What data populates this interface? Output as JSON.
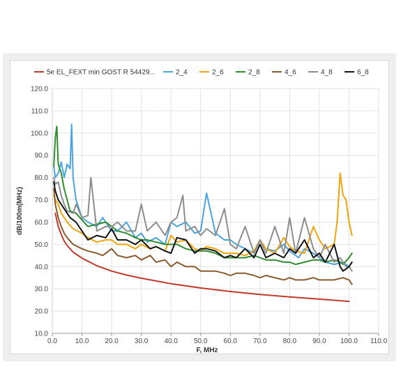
{
  "chart_data": {
    "type": "line",
    "title": "",
    "xlabel": "F, MHz",
    "ylabel": "dB/100m(MHz)",
    "xlim": [
      0,
      110
    ],
    "ylim": [
      10,
      120
    ],
    "x_ticks": [
      "0.0",
      "10.0",
      "20.0",
      "30.0",
      "40.0",
      "50.0",
      "60.0",
      "70.0",
      "80.0",
      "90.0",
      "100.0",
      "110.0"
    ],
    "y_ticks": [
      "10.0",
      "20.0",
      "30.0",
      "40.0",
      "50.0",
      "60.0",
      "70.0",
      "80.0",
      "90.0",
      "100.0",
      "110.0",
      "120.0"
    ],
    "grid": true,
    "legend_position": "top",
    "series": [
      {
        "name": "5e EL_FEXT min GOST R 54429...",
        "color": "#c0392b",
        "x": [
          1,
          2,
          3,
          4,
          5,
          7,
          10,
          15,
          20,
          25,
          30,
          40,
          50,
          60,
          70,
          80,
          90,
          100
        ],
        "y": [
          64,
          58,
          54.5,
          51.5,
          49.5,
          46.5,
          43.8,
          40.4,
          38,
          36.2,
          34.8,
          32.3,
          30.4,
          28.8,
          27.5,
          26.4,
          25.4,
          24.4
        ]
      },
      {
        "name": "2_4",
        "color": "#4aa3df",
        "x": [
          0.5,
          1,
          2,
          3,
          4,
          5,
          6,
          6.5,
          7,
          8,
          10,
          12,
          15,
          17,
          20,
          22,
          25,
          28,
          30,
          32,
          35,
          38,
          40,
          42,
          45,
          48,
          50,
          52,
          55,
          58,
          60,
          62,
          65,
          68,
          70,
          72,
          75,
          78,
          80,
          83,
          85,
          88,
          90,
          92,
          95,
          98,
          100,
          101
        ],
        "y": [
          85,
          80,
          82,
          87,
          80,
          86,
          84,
          104,
          80,
          70,
          62,
          60,
          58,
          62,
          56,
          56,
          60,
          53,
          55,
          51,
          53,
          50,
          60,
          58,
          60,
          55,
          56,
          73,
          55,
          52,
          52,
          50,
          48,
          46,
          52,
          48,
          47,
          50,
          47,
          44,
          48,
          46,
          44,
          42,
          41,
          42,
          40,
          42
        ]
      },
      {
        "name": "2_6",
        "color": "#f0a30a",
        "x": [
          0.5,
          1,
          2,
          3,
          5,
          7,
          10,
          12,
          15,
          18,
          20,
          22,
          25,
          28,
          30,
          33,
          35,
          38,
          40,
          42,
          45,
          48,
          50,
          52,
          55,
          58,
          60,
          62,
          65,
          68,
          70,
          72,
          75,
          78,
          80,
          82,
          85,
          88,
          90,
          92,
          95,
          96,
          97,
          98,
          99,
          100,
          101
        ],
        "y": [
          72,
          70,
          68,
          64,
          60,
          57,
          55,
          53,
          51,
          52,
          52,
          50,
          50,
          48,
          50,
          48,
          49,
          47,
          54,
          51,
          52,
          48,
          47,
          49,
          48,
          46,
          46,
          46,
          45,
          47,
          52,
          48,
          46,
          53,
          49,
          47,
          46,
          58,
          52,
          48,
          50,
          60,
          82,
          72,
          70,
          60,
          54
        ]
      },
      {
        "name": "2_8",
        "color": "#2e8b2e",
        "x": [
          0.5,
          1,
          1.5,
          2,
          3,
          4,
          5,
          6,
          8,
          10,
          12,
          15,
          18,
          20,
          22,
          25,
          28,
          30,
          32,
          35,
          38,
          40,
          42,
          45,
          48,
          50,
          52,
          55,
          58,
          60,
          62,
          65,
          68,
          70,
          72,
          75,
          78,
          80,
          82,
          85,
          88,
          90,
          92,
          95,
          97,
          98,
          100,
          101
        ],
        "y": [
          85,
          98,
          103,
          86,
          82,
          75,
          70,
          65,
          64,
          61,
          58,
          59,
          60,
          58,
          56,
          55,
          53,
          52,
          52,
          51,
          50,
          50,
          50,
          48,
          47,
          47,
          47,
          46,
          44,
          44,
          44,
          44,
          45,
          44,
          43,
          43,
          42,
          42,
          41,
          42,
          43,
          43,
          42,
          43,
          42,
          41,
          44,
          46
        ]
      },
      {
        "name": "4_6",
        "color": "#8b5a2b",
        "x": [
          0.5,
          1,
          2,
          3,
          4,
          5,
          7,
          10,
          12,
          15,
          17,
          20,
          22,
          25,
          28,
          30,
          33,
          35,
          38,
          40,
          42,
          45,
          48,
          50,
          52,
          55,
          58,
          60,
          62,
          65,
          68,
          70,
          72,
          75,
          78,
          80,
          82,
          85,
          88,
          90,
          92,
          95,
          98,
          100,
          101
        ],
        "y": [
          75,
          68,
          62,
          58,
          55,
          53,
          50,
          48,
          47,
          46,
          45,
          48,
          45,
          44,
          45,
          43,
          45,
          42,
          43,
          40,
          42,
          40,
          40,
          38,
          38,
          38,
          37,
          36,
          37,
          37,
          36,
          35,
          36,
          35,
          34,
          35,
          34,
          34,
          35,
          34,
          34,
          34,
          35,
          34,
          32
        ]
      },
      {
        "name": "4_8",
        "color": "#8c8c8c",
        "x": [
          0.5,
          1,
          2,
          3,
          4,
          5,
          7,
          8,
          10,
          12,
          13,
          15,
          18,
          20,
          22,
          25,
          28,
          30,
          32,
          35,
          38,
          40,
          42,
          44,
          45,
          48,
          50,
          52,
          55,
          58,
          60,
          62,
          65,
          68,
          70,
          72,
          75,
          78,
          80,
          82,
          85,
          88,
          90,
          92,
          95,
          97,
          99,
          100,
          101
        ],
        "y": [
          80,
          77,
          78,
          72,
          68,
          65,
          64,
          68,
          62,
          63,
          80,
          56,
          58,
          58,
          60,
          56,
          56,
          68,
          56,
          60,
          54,
          60,
          62,
          72,
          56,
          58,
          54,
          57,
          54,
          66,
          50,
          48,
          58,
          46,
          52,
          46,
          58,
          46,
          62,
          46,
          62,
          48,
          44,
          50,
          42,
          44,
          40,
          40,
          38
        ]
      },
      {
        "name": "6_8",
        "color": "#111111",
        "x": [
          0.5,
          1,
          2,
          3,
          4,
          5,
          6,
          7,
          8,
          10,
          12,
          15,
          18,
          20,
          22,
          25,
          28,
          30,
          33,
          35,
          38,
          40,
          42,
          45,
          48,
          50,
          52,
          55,
          58,
          60,
          62,
          65,
          68,
          70,
          72,
          75,
          78,
          80,
          82,
          85,
          88,
          90,
          92,
          95,
          97,
          98,
          100,
          101
        ],
        "y": [
          78,
          74,
          70,
          68,
          66,
          64,
          62,
          61,
          60,
          56,
          52,
          54,
          53,
          57,
          52,
          52,
          50,
          52,
          48,
          49,
          47,
          46,
          53,
          52,
          46,
          48,
          48,
          47,
          44,
          45,
          44,
          48,
          44,
          50,
          44,
          46,
          44,
          48,
          46,
          52,
          44,
          46,
          42,
          50,
          40,
          38,
          40,
          42
        ]
      }
    ]
  }
}
